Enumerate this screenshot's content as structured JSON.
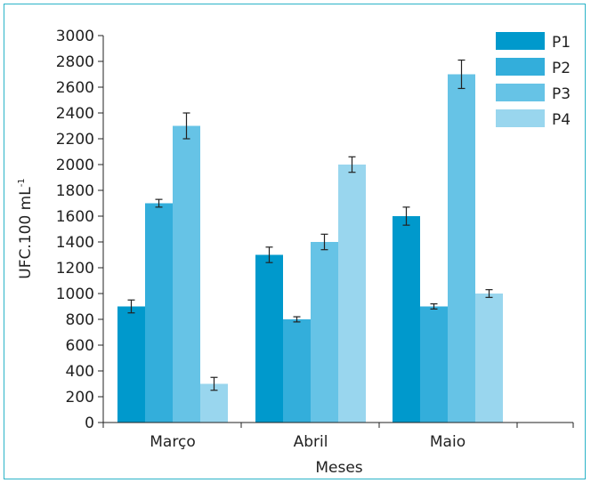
{
  "chart_data": {
    "type": "bar",
    "categories": [
      "Março",
      "Abril",
      "Maio"
    ],
    "series": [
      {
        "name": "P1",
        "values": [
          900,
          1300,
          1600
        ],
        "errors": [
          50,
          60,
          70
        ],
        "color": "#0099cc"
      },
      {
        "name": "P2",
        "values": [
          1700,
          800,
          900
        ],
        "errors": [
          30,
          20,
          20
        ],
        "color": "#33aedb"
      },
      {
        "name": "P3",
        "values": [
          2300,
          1400,
          2700
        ],
        "errors": [
          100,
          60,
          110
        ],
        "color": "#66c3e6"
      },
      {
        "name": "P4",
        "values": [
          300,
          2000,
          1000
        ],
        "errors": [
          50,
          60,
          30
        ],
        "color": "#99d6ee"
      }
    ],
    "xlabel": "Meses",
    "ylabel": "UFC.100 mL",
    "ylabel_sup": "-1",
    "ylim": [
      0,
      3000
    ],
    "yticks": [
      0,
      200,
      400,
      600,
      800,
      1000,
      1200,
      1400,
      1600,
      1800,
      2000,
      2200,
      2400,
      2600,
      2800,
      3000
    ],
    "legend_position": "top-right",
    "grid": false
  }
}
